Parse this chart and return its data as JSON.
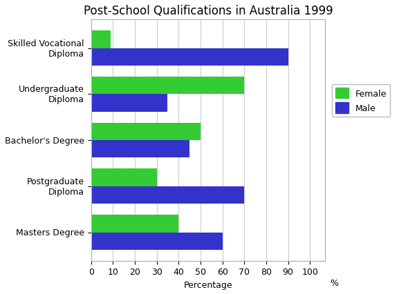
{
  "title": "Post-School Qualifications in Australia 1999",
  "categories": [
    "Skilled Vocational\nDiploma",
    "Undergraduate\nDiploma",
    "Bachelor's Degree",
    "Postgraduate\nDiploma",
    "Masters Degree"
  ],
  "female_values": [
    9,
    70,
    50,
    30,
    40
  ],
  "male_values": [
    90,
    35,
    45,
    70,
    60
  ],
  "female_color": "#33CC33",
  "male_color": "#3333CC",
  "xlabel": "Percentage",
  "xlim": [
    0,
    107
  ],
  "xticks": [
    0,
    10,
    20,
    30,
    40,
    50,
    60,
    70,
    80,
    90,
    100
  ],
  "xtick_labels": [
    "0",
    "10",
    "20",
    "30",
    "40",
    "50",
    "60",
    "70",
    "80",
    "90",
    "100"
  ],
  "xlabel_suffix": "%",
  "title_fontsize": 12,
  "legend_labels": [
    "Female",
    "Male"
  ],
  "bar_height": 0.38,
  "background_color": "#ffffff",
  "grid_color": "#cccccc"
}
